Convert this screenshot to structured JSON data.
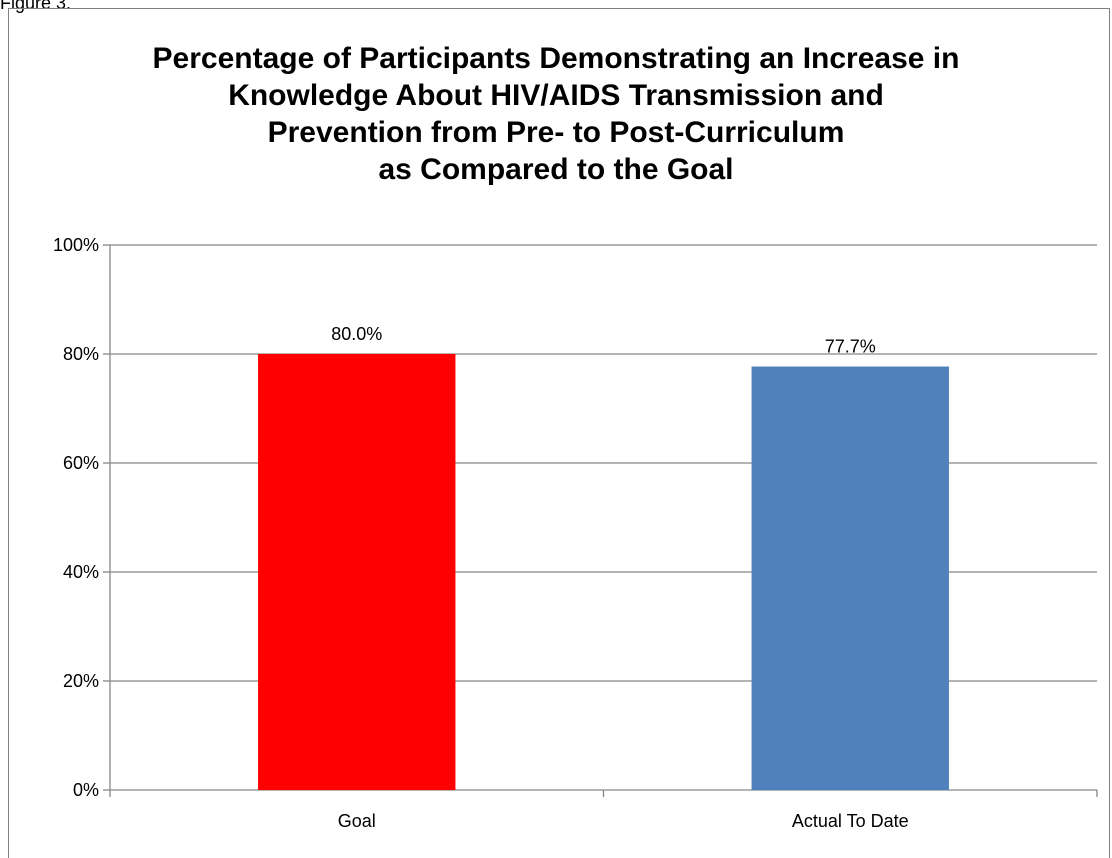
{
  "figure_label": "Figure 3.",
  "chart_data": {
    "type": "bar",
    "title_lines": [
      "Percentage of Participants Demonstrating an Increase in",
      "Knowledge About HIV/AIDS Transmission and",
      "Prevention from Pre- to Post-Curriculum",
      "as Compared to the Goal"
    ],
    "categories": [
      "Goal",
      "Actual To Date"
    ],
    "values": [
      80.0,
      77.7
    ],
    "data_labels": [
      "80.0%",
      "77.7%"
    ],
    "bar_colors": [
      "#ff0000",
      "#4f81bd"
    ],
    "yticks": [
      "0%",
      "20%",
      "40%",
      "60%",
      "80%",
      "100%"
    ],
    "ylim": [
      0,
      100
    ],
    "grid": true,
    "legend": "none"
  }
}
